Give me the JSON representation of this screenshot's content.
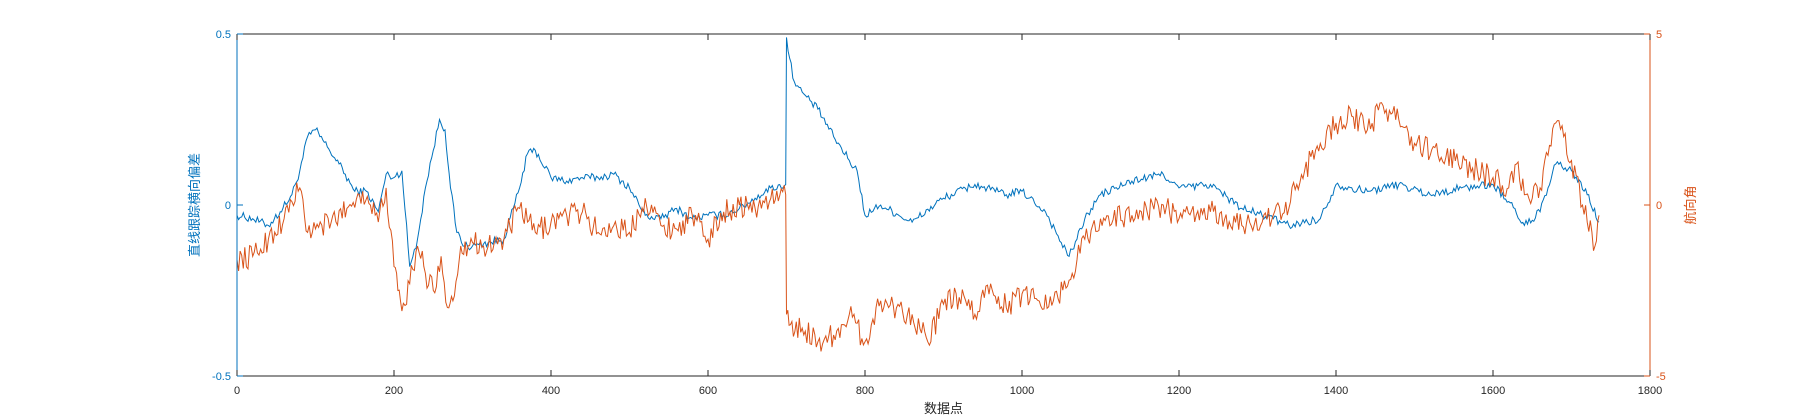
{
  "chart_data": {
    "type": "line",
    "xlabel": "数据点",
    "ylabel_left": "直线跟踪横向偏差",
    "ylabel_right": "航向角",
    "xlim": [
      0,
      1800
    ],
    "ylim_left": [
      -0.5,
      0.5
    ],
    "ylim_right": [
      -5,
      5
    ],
    "x_ticks": [
      0,
      200,
      400,
      600,
      800,
      1000,
      1200,
      1400,
      1600,
      1800
    ],
    "y_left_ticks": [
      -0.5,
      0,
      0.5
    ],
    "y_right_ticks": [
      -5,
      0,
      5
    ],
    "grid": false,
    "colors": {
      "left": "#0072BD",
      "right": "#D95319",
      "axes": "#262626"
    },
    "series": [
      {
        "axis": "left",
        "x": [
          0,
          20,
          40,
          55,
          70,
          80,
          90,
          100,
          115,
          130,
          150,
          165,
          180,
          190,
          200,
          210,
          220,
          230,
          240,
          250,
          258,
          265,
          272,
          280,
          290,
          300,
          320,
          340,
          360,
          370,
          380,
          400,
          420,
          440,
          460,
          480,
          500,
          520,
          540,
          560,
          580,
          600,
          620,
          640,
          660,
          680,
          699,
          700,
          702,
          710,
          720,
          740,
          760,
          780,
          790,
          800,
          820,
          860,
          900,
          940,
          980,
          1000,
          1030,
          1050,
          1060,
          1070,
          1080,
          1100,
          1140,
          1180,
          1200,
          1240,
          1280,
          1320,
          1340,
          1380,
          1400,
          1440,
          1480,
          1520,
          1560,
          1600,
          1620,
          1640,
          1660,
          1670,
          1680,
          1700,
          1720,
          1735
        ],
        "y": [
          -0.03,
          -0.04,
          -0.06,
          -0.02,
          0.03,
          0.1,
          0.2,
          0.22,
          0.17,
          0.12,
          0.04,
          0.04,
          -0.02,
          0.09,
          0.08,
          0.1,
          -0.18,
          -0.1,
          0.05,
          0.16,
          0.25,
          0.22,
          0.05,
          -0.08,
          -0.12,
          -0.12,
          -0.11,
          -0.1,
          0.05,
          0.15,
          0.16,
          0.08,
          0.07,
          0.08,
          0.08,
          0.09,
          0.05,
          -0.03,
          -0.04,
          -0.01,
          -0.04,
          -0.03,
          -0.03,
          -0.01,
          0.02,
          0.05,
          0.06,
          0.49,
          0.45,
          0.36,
          0.33,
          0.28,
          0.2,
          0.13,
          0.1,
          -0.03,
          0.0,
          -0.05,
          0.02,
          0.06,
          0.03,
          0.04,
          -0.02,
          -0.11,
          -0.15,
          -0.1,
          -0.04,
          0.03,
          0.07,
          0.09,
          0.05,
          0.06,
          -0.01,
          -0.04,
          -0.06,
          -0.04,
          0.06,
          0.04,
          0.06,
          0.03,
          0.05,
          0.06,
          0.01,
          -0.06,
          -0.02,
          0.05,
          0.12,
          0.1,
          0.03,
          -0.05
        ]
      },
      {
        "axis": "right",
        "x": [
          0,
          20,
          40,
          60,
          70,
          80,
          90,
          100,
          120,
          140,
          160,
          170,
          180,
          190,
          200,
          205,
          210,
          220,
          230,
          240,
          250,
          260,
          268,
          275,
          285,
          300,
          320,
          340,
          360,
          380,
          400,
          420,
          440,
          460,
          480,
          500,
          520,
          540,
          560,
          580,
          600,
          620,
          640,
          660,
          680,
          699,
          700,
          705,
          720,
          740,
          760,
          780,
          800,
          820,
          860,
          880,
          900,
          920,
          940,
          960,
          980,
          1000,
          1040,
          1060,
          1070,
          1080,
          1100,
          1140,
          1180,
          1200,
          1240,
          1280,
          1320,
          1340,
          1350,
          1360,
          1380,
          1400,
          1420,
          1440,
          1460,
          1480,
          1500,
          1540,
          1580,
          1600,
          1620,
          1630,
          1640,
          1660,
          1680,
          1690,
          1700,
          1720,
          1730,
          1735
        ],
        "y": [
          -1.6,
          -1.5,
          -1.0,
          -0.4,
          0.1,
          0.5,
          -0.8,
          -0.7,
          -0.5,
          -0.1,
          0.4,
          0.0,
          -0.5,
          0.5,
          -1.8,
          -2.5,
          -3.1,
          -2.3,
          -1.2,
          -2.0,
          -2.5,
          -1.5,
          -3.0,
          -2.8,
          -1.2,
          -1.1,
          -1.2,
          -1.0,
          -0.1,
          -0.8,
          -0.5,
          -0.3,
          -0.2,
          -0.8,
          -0.6,
          -0.8,
          0.2,
          -0.6,
          -0.7,
          -0.3,
          -1.0,
          -0.2,
          0.0,
          -0.1,
          0.2,
          0.3,
          -3.2,
          -3.5,
          -3.6,
          -4.0,
          -3.8,
          -3.2,
          -4.0,
          -2.8,
          -3.2,
          -4.0,
          -2.9,
          -2.7,
          -3.2,
          -2.3,
          -3.0,
          -2.6,
          -2.8,
          -2.2,
          -1.6,
          -1.0,
          -0.4,
          -0.3,
          0.0,
          -0.4,
          -0.2,
          -0.6,
          -0.3,
          -0.1,
          0.6,
          1.0,
          1.8,
          2.4,
          2.6,
          2.2,
          2.9,
          2.5,
          1.8,
          1.4,
          1.0,
          0.8,
          0.5,
          1.2,
          0.3,
          0.5,
          2.4,
          2.0,
          1.3,
          -0.5,
          -1.2,
          -0.3
        ]
      }
    ]
  }
}
